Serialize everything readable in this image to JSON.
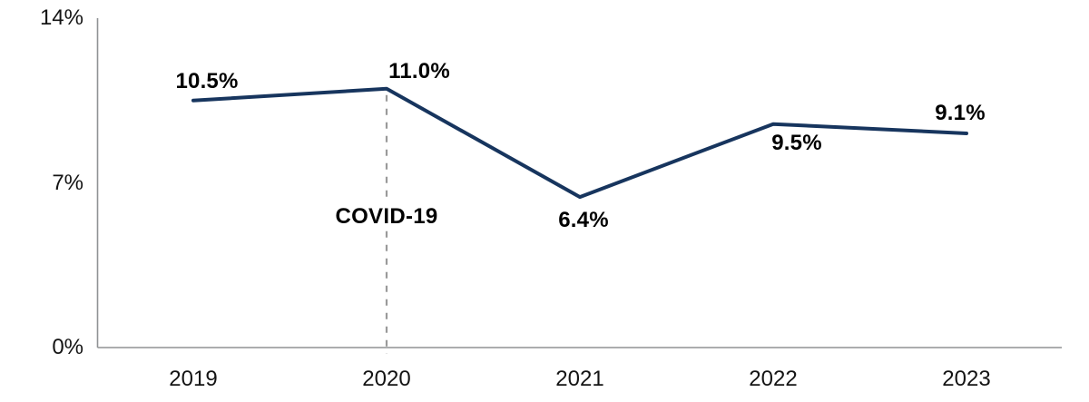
{
  "chart_data": {
    "type": "line",
    "title": "",
    "xlabel": "",
    "ylabel": "",
    "categories": [
      "2019",
      "2020",
      "2021",
      "2022",
      "2023"
    ],
    "values": [
      10.5,
      11.0,
      6.4,
      9.5,
      9.1
    ],
    "point_labels": [
      "10.5%",
      "11.0%",
      "6.4%",
      "9.5%",
      "9.1%"
    ],
    "ylim": [
      0,
      14
    ],
    "y_ticks": [
      {
        "value": 0,
        "label": "0%"
      },
      {
        "value": 7,
        "label": "7%"
      },
      {
        "value": 14,
        "label": "14%"
      }
    ],
    "annotation": {
      "label": "COVID-19",
      "category": "2020"
    },
    "grid": false,
    "legend": false,
    "colors": {
      "line": "#17355e",
      "axis": "#8f9294",
      "annotation_line": "#9a9a9a",
      "text": "#141414",
      "data_label_text": "#000000",
      "background": "#ffffff"
    }
  }
}
